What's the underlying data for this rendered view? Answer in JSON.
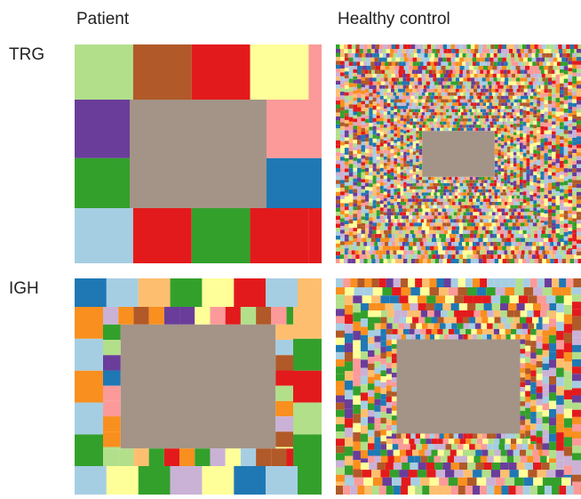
{
  "columns": [
    "Patient",
    "Healthy control"
  ],
  "rows": [
    "TRG",
    "IGH"
  ]
}
